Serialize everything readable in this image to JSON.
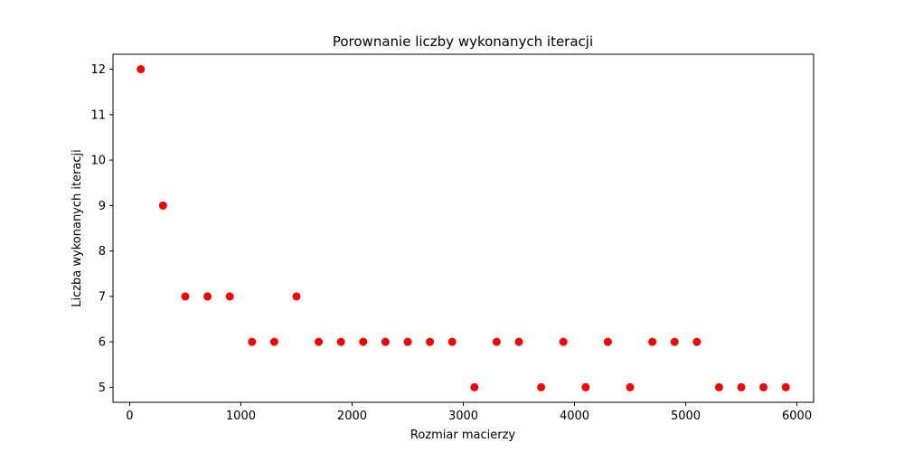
{
  "chart_data": {
    "type": "scatter",
    "title": "Porownanie liczby wykonanych iteracji",
    "xlabel": "Rozmiar macierzy",
    "ylabel": "Liczba wykonanych iteracji",
    "xlim": [
      -150,
      6150
    ],
    "ylim": [
      4.67,
      12.33
    ],
    "xticks": [
      0,
      1000,
      2000,
      3000,
      4000,
      5000,
      6000
    ],
    "yticks": [
      5,
      6,
      7,
      8,
      9,
      10,
      11,
      12
    ],
    "grid": false,
    "marker_color": "#ff0000",
    "series": [
      {
        "x": [
          100,
          300,
          500,
          700,
          900,
          1100,
          1300,
          1500,
          1700,
          1900,
          2100,
          2300,
          2500,
          2700,
          2900,
          3100,
          3300,
          3500,
          3700,
          3900,
          4100,
          4300,
          4500,
          4700,
          4900,
          5100,
          5300,
          5500,
          5700,
          5900
        ],
        "y": [
          12,
          9,
          7,
          7,
          7,
          6,
          6,
          7,
          6,
          6,
          6,
          6,
          6,
          6,
          6,
          5,
          6,
          6,
          5,
          6,
          5,
          6,
          5,
          6,
          6,
          6,
          5,
          5,
          5,
          5
        ]
      }
    ]
  }
}
